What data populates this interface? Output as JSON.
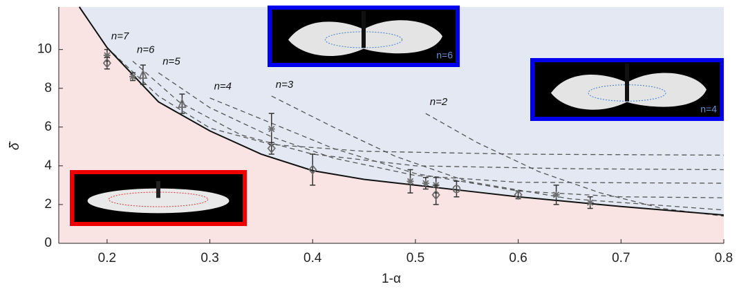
{
  "chart_data": {
    "type": "line",
    "xlabel": "1-α",
    "ylabel": "δ̄",
    "xlim": [
      0.153,
      0.8
    ],
    "ylim": [
      0,
      12.2
    ],
    "xticks": [
      0.2,
      0.3,
      0.4,
      0.5,
      0.6,
      0.7,
      0.8
    ],
    "yticks": [
      0,
      2,
      4,
      6,
      8,
      10
    ],
    "below_color": "#fae3e3",
    "above_color": "#e3e8f3",
    "boundary": {
      "color": "#111111",
      "x": [
        0.173,
        0.2,
        0.25,
        0.3,
        0.35,
        0.4,
        0.45,
        0.5,
        0.55,
        0.6,
        0.65,
        0.7,
        0.75,
        0.8
      ],
      "y": [
        12.2,
        10.1,
        7.3,
        5.8,
        4.6,
        3.75,
        3.3,
        3.0,
        2.7,
        2.4,
        2.15,
        1.9,
        1.68,
        1.46
      ]
    },
    "modes": [
      {
        "name": "n=7",
        "x": [
          0.2,
          0.25,
          0.3,
          0.36,
          0.45,
          0.6,
          0.8
        ],
        "y": [
          10.1,
          7.6,
          5.95,
          5.1,
          4.75,
          4.6,
          4.55
        ]
      },
      {
        "name": "n=6",
        "x": [
          0.225,
          0.27,
          0.33,
          0.4,
          0.5,
          0.65,
          0.8
        ],
        "y": [
          9.4,
          7.3,
          5.6,
          4.6,
          4.0,
          3.85,
          3.8
        ]
      },
      {
        "name": "n=5",
        "x": [
          0.25,
          0.3,
          0.36,
          0.42,
          0.5,
          0.6,
          0.8
        ],
        "y": [
          8.8,
          7.0,
          5.5,
          4.4,
          3.5,
          3.15,
          3.1
        ]
      },
      {
        "name": "n=4",
        "x": [
          0.3,
          0.36,
          0.42,
          0.5,
          0.6,
          0.7,
          0.8
        ],
        "y": [
          7.5,
          6.2,
          4.9,
          3.6,
          2.7,
          2.4,
          2.35
        ]
      },
      {
        "name": "n=3",
        "x": [
          0.36,
          0.42,
          0.48,
          0.55,
          0.65,
          0.8
        ],
        "y": [
          7.6,
          6.0,
          4.5,
          3.2,
          2.3,
          1.72
        ]
      },
      {
        "name": "n=2",
        "x": [
          0.51,
          0.56,
          0.62,
          0.68,
          0.74,
          0.8
        ],
        "y": [
          6.7,
          5.2,
          3.7,
          2.6,
          1.8,
          1.4
        ]
      }
    ],
    "mode_color": "#555555",
    "points": {
      "color": "#6e6e6e",
      "x": [
        0.2,
        0.2,
        0.225,
        0.235,
        0.273,
        0.36,
        0.36,
        0.4,
        0.495,
        0.51,
        0.52,
        0.52,
        0.54,
        0.6,
        0.637,
        0.67
      ],
      "y": [
        9.7,
        9.3,
        8.6,
        8.7,
        7.2,
        5.9,
        4.9,
        3.8,
        3.2,
        3.1,
        3.0,
        2.5,
        2.8,
        2.5,
        2.5,
        2.1
      ],
      "err": [
        0.3,
        0.3,
        0.2,
        0.5,
        0.5,
        0.8,
        0.3,
        0.8,
        0.6,
        0.3,
        0.4,
        0.5,
        0.4,
        0.2,
        0.5,
        0.3
      ],
      "marker": [
        "star",
        "diamond",
        "star",
        "triangle",
        "triangle",
        "star",
        "diamond",
        "diamond",
        "star",
        "star",
        "star",
        "diamond",
        "circle",
        "diamond",
        "star",
        "star"
      ]
    },
    "insets": [
      {
        "label": "n=6",
        "border": "#0000ee"
      },
      {
        "label": "n=4",
        "border": "#0000ee"
      },
      {
        "border": "#ee0000"
      }
    ]
  }
}
